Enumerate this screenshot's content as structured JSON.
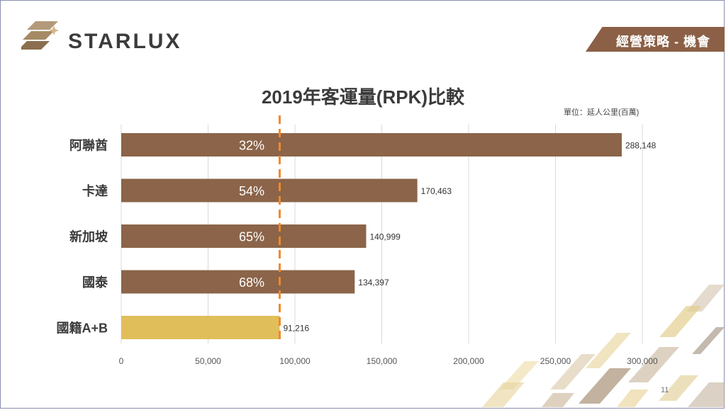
{
  "header": {
    "brand": "STARLUX",
    "section_tag": "經營策略 - 機會"
  },
  "slide": {
    "page_number": "11"
  },
  "colors": {
    "bar_primary": "#8b6449",
    "bar_highlight": "#e0be5a",
    "reference_line": "#f08a2c",
    "tag_bg": "#8b6046"
  },
  "chart_data": {
    "type": "bar",
    "orientation": "horizontal",
    "title": "2019年客運量(RPK)比較",
    "unit_note": "單位：延人公里(百萬)",
    "categories": [
      "阿聯酋",
      "卡達",
      "新加坡",
      "國泰",
      "國籍A+B"
    ],
    "values": [
      288148,
      170463,
      140999,
      134397,
      91216
    ],
    "value_labels": [
      "288,148",
      "170,463",
      "140,999",
      "134,397",
      "91,216"
    ],
    "bar_percent_labels": [
      "32%",
      "54%",
      "65%",
      "68%",
      ""
    ],
    "highlight_category": "國籍A+B",
    "reference_value": 91216,
    "xlim": [
      0,
      300000
    ],
    "xticks": [
      0,
      50000,
      100000,
      150000,
      200000,
      250000,
      300000
    ],
    "xtick_labels": [
      "0",
      "50,000",
      "100,000",
      "150,000",
      "200,000",
      "250,000",
      "300,000"
    ],
    "grid": true
  }
}
